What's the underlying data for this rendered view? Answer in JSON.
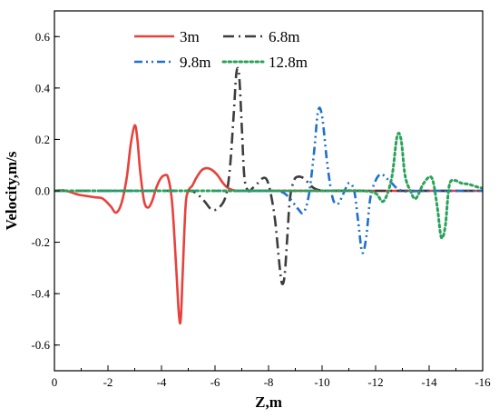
{
  "chart_data": {
    "type": "line",
    "xlabel": "Z,m",
    "ylabel": "Velocity,m/s",
    "xlim": [
      0,
      -16
    ],
    "ylim": [
      -0.7,
      0.7
    ],
    "xticks": [
      0,
      -2,
      -4,
      -6,
      -8,
      -10,
      -12,
      -14,
      -16
    ],
    "xtick_labels": [
      "0",
      "-2",
      "-4",
      "-6",
      "-8",
      "-10",
      "-12",
      "-14",
      "-16"
    ],
    "yticks": [
      -0.6,
      -0.4,
      -0.2,
      0.0,
      0.2,
      0.4,
      0.6
    ],
    "ytick_labels": [
      "-0.6",
      "-0.4",
      "-0.2",
      "0.0",
      "0.2",
      "0.4",
      "0.6"
    ],
    "grid": false,
    "legend_position": "top-center",
    "series": [
      {
        "name": "3m",
        "color": "#e8413c",
        "dash": "solid",
        "x": [
          0,
          -0.3,
          -0.6,
          -0.9,
          -1.2,
          -1.5,
          -1.8,
          -2.1,
          -2.3,
          -2.5,
          -2.7,
          -2.85,
          -3.0,
          -3.1,
          -3.2,
          -3.35,
          -3.5,
          -3.65,
          -3.8,
          -3.95,
          -4.1,
          -4.25,
          -4.4,
          -4.55,
          -4.65,
          -4.72,
          -4.8,
          -4.9,
          -5.0,
          -5.15,
          -5.3,
          -5.5,
          -5.7,
          -5.9,
          -6.1,
          -6.3,
          -6.5,
          -6.8,
          -7.2,
          -8,
          -10,
          -12,
          -14,
          -16
        ],
        "y": [
          0.0,
          0.002,
          -0.005,
          -0.015,
          -0.02,
          -0.025,
          -0.03,
          -0.06,
          -0.085,
          -0.05,
          0.05,
          0.18,
          0.255,
          0.2,
          0.08,
          -0.04,
          -0.065,
          -0.04,
          0.01,
          0.045,
          0.06,
          0.05,
          -0.05,
          -0.3,
          -0.48,
          -0.5,
          -0.3,
          -0.06,
          0.0,
          0.02,
          0.05,
          0.08,
          0.088,
          0.08,
          0.06,
          0.03,
          0.01,
          0.0,
          0.0,
          0.0,
          0.0,
          0.0,
          0.0,
          0.0
        ]
      },
      {
        "name": "6.8m",
        "color": "#3d3d3d",
        "dash": "dashdot",
        "x": [
          0,
          -2,
          -4,
          -5.0,
          -5.3,
          -5.6,
          -5.9,
          -6.2,
          -6.4,
          -6.55,
          -6.7,
          -6.8,
          -6.9,
          -7.0,
          -7.1,
          -7.25,
          -7.4,
          -7.6,
          -7.8,
          -7.95,
          -8.1,
          -8.25,
          -8.4,
          -8.5,
          -8.6,
          -8.7,
          -8.8,
          -8.95,
          -9.1,
          -9.3,
          -9.5,
          -9.7,
          -10.0,
          -10.3,
          -12,
          -14,
          -16
        ],
        "y": [
          0.0,
          0.0,
          0.0,
          0.0,
          -0.01,
          -0.04,
          -0.075,
          -0.06,
          -0.02,
          0.08,
          0.3,
          0.46,
          0.45,
          0.25,
          0.05,
          0.0,
          0.01,
          0.03,
          0.05,
          0.04,
          -0.02,
          -0.12,
          -0.28,
          -0.36,
          -0.33,
          -0.18,
          -0.03,
          0.04,
          0.055,
          0.05,
          0.03,
          0.01,
          0.0,
          0.0,
          0.0,
          0.0,
          0.0
        ]
      },
      {
        "name": "9.8m",
        "color": "#1f6fd1",
        "dash": "dashdotdot",
        "x": [
          0,
          -2,
          -4,
          -6,
          -8,
          -8.5,
          -8.8,
          -9.1,
          -9.3,
          -9.5,
          -9.7,
          -9.85,
          -10.0,
          -10.2,
          -10.4,
          -10.6,
          -10.8,
          -11.0,
          -11.2,
          -11.35,
          -11.5,
          -11.65,
          -11.8,
          -12.0,
          -12.2,
          -12.4,
          -12.6,
          -13.0,
          -14,
          -16
        ],
        "y": [
          0.0,
          0.0,
          0.0,
          0.0,
          0.0,
          -0.005,
          -0.03,
          -0.07,
          -0.085,
          -0.02,
          0.15,
          0.31,
          0.29,
          0.1,
          -0.03,
          -0.05,
          -0.01,
          0.03,
          0.0,
          -0.12,
          -0.24,
          -0.18,
          -0.03,
          0.04,
          0.065,
          0.05,
          0.03,
          0.0,
          0.0,
          0.0
        ]
      },
      {
        "name": "12.8m",
        "color": "#2aa35a",
        "dash": "dotted",
        "x": [
          0,
          -2,
          -4,
          -6,
          -8,
          -10,
          -11.5,
          -12.0,
          -12.3,
          -12.6,
          -12.8,
          -12.95,
          -13.1,
          -13.3,
          -13.5,
          -13.8,
          -14.1,
          -14.3,
          -14.45,
          -14.6,
          -14.75,
          -14.95,
          -15.2,
          -15.5,
          -15.8,
          -16.0
        ],
        "y": [
          0.0,
          0.0,
          0.0,
          0.0,
          0.0,
          0.0,
          0.0,
          -0.01,
          -0.04,
          0.05,
          0.21,
          0.2,
          0.06,
          0.0,
          -0.03,
          0.03,
          0.05,
          -0.06,
          -0.18,
          -0.14,
          0.02,
          0.04,
          0.03,
          0.025,
          0.015,
          0.01
        ]
      }
    ]
  }
}
